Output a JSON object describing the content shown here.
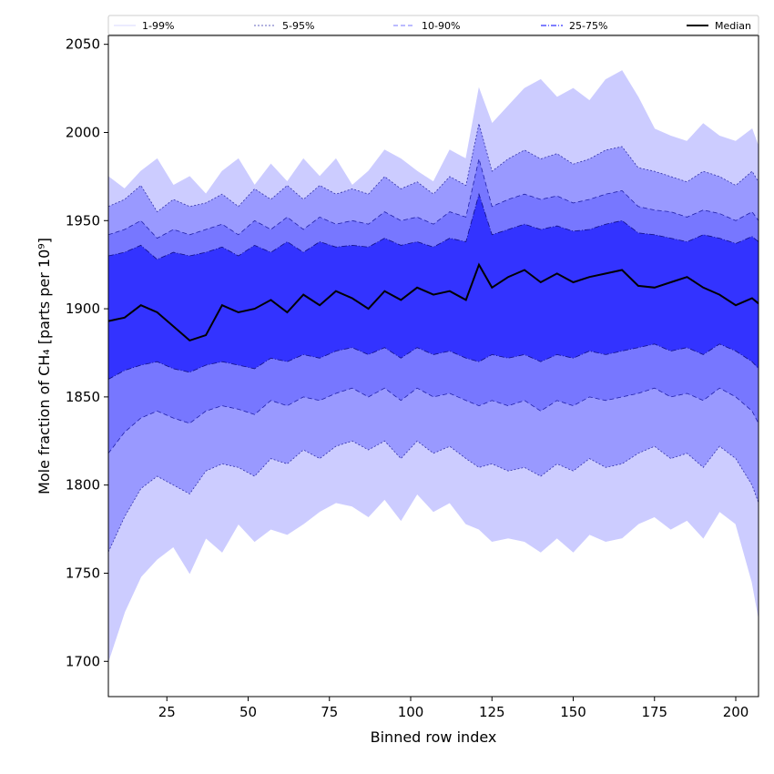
{
  "chart_data": {
    "type": "area",
    "title": "",
    "xlabel": "Binned row index",
    "ylabel": "Mole fraction of CH₄ [parts per 10⁹]",
    "xlim": [
      7,
      207
    ],
    "ylim": [
      1680,
      2055
    ],
    "x_ticks": [
      25,
      50,
      75,
      100,
      125,
      150,
      175,
      200
    ],
    "y_ticks": [
      1700,
      1750,
      1800,
      1850,
      1900,
      1950,
      2000,
      2050
    ],
    "grid": false,
    "legend_placement": "top",
    "legend": [
      {
        "label": "1-99%",
        "color": "#ccccff",
        "style": "thin-solid"
      },
      {
        "label": "5-95%",
        "color": "#3333aa",
        "style": "dotted"
      },
      {
        "label": "10-90%",
        "color": "#7777ff",
        "style": "dashed"
      },
      {
        "label": "25-75%",
        "color": "#3333ff",
        "style": "dashdot"
      },
      {
        "label": "Median",
        "color": "#000000",
        "style": "solid"
      }
    ],
    "x": [
      7,
      12,
      17,
      22,
      27,
      32,
      37,
      42,
      47,
      52,
      57,
      62,
      67,
      72,
      77,
      82,
      87,
      92,
      97,
      102,
      107,
      112,
      117,
      121,
      125,
      130,
      135,
      140,
      145,
      150,
      155,
      160,
      165,
      170,
      175,
      180,
      185,
      190,
      195,
      200,
      205,
      207
    ],
    "series": [
      {
        "name": "1-99%",
        "lower": [
          1700,
          1728,
          1748,
          1758,
          1765,
          1750,
          1770,
          1762,
          1778,
          1768,
          1775,
          1772,
          1778,
          1785,
          1790,
          1788,
          1782,
          1792,
          1780,
          1795,
          1785,
          1790,
          1778,
          1775,
          1768,
          1770,
          1768,
          1762,
          1770,
          1762,
          1772,
          1768,
          1770,
          1778,
          1782,
          1775,
          1780,
          1770,
          1785,
          1778,
          1745,
          1725
        ],
        "upper": [
          1975,
          1968,
          1978,
          1985,
          1970,
          1975,
          1965,
          1978,
          1985,
          1970,
          1982,
          1972,
          1985,
          1975,
          1985,
          1970,
          1978,
          1990,
          1985,
          1978,
          1972,
          1990,
          1985,
          2025,
          2005,
          2015,
          2025,
          2030,
          2020,
          2025,
          2018,
          2030,
          2035,
          2020,
          2002,
          1998,
          1995,
          2005,
          1998,
          1995,
          2002,
          1992
        ]
      },
      {
        "name": "5-95%",
        "lower": [
          1762,
          1782,
          1798,
          1805,
          1800,
          1795,
          1808,
          1812,
          1810,
          1805,
          1815,
          1812,
          1820,
          1815,
          1822,
          1825,
          1820,
          1825,
          1815,
          1825,
          1818,
          1822,
          1815,
          1810,
          1812,
          1808,
          1810,
          1805,
          1812,
          1808,
          1815,
          1810,
          1812,
          1818,
          1822,
          1815,
          1818,
          1810,
          1822,
          1815,
          1800,
          1790
        ],
        "upper": [
          1958,
          1962,
          1970,
          1955,
          1962,
          1958,
          1960,
          1965,
          1958,
          1968,
          1962,
          1970,
          1962,
          1970,
          1965,
          1968,
          1965,
          1975,
          1968,
          1972,
          1965,
          1975,
          1970,
          2005,
          1978,
          1985,
          1990,
          1985,
          1988,
          1982,
          1985,
          1990,
          1992,
          1980,
          1978,
          1975,
          1972,
          1978,
          1975,
          1970,
          1978,
          1972
        ]
      },
      {
        "name": "10-90%",
        "lower": [
          1818,
          1830,
          1838,
          1842,
          1838,
          1835,
          1842,
          1845,
          1843,
          1840,
          1848,
          1845,
          1850,
          1848,
          1852,
          1855,
          1850,
          1855,
          1848,
          1855,
          1850,
          1852,
          1848,
          1845,
          1848,
          1845,
          1848,
          1842,
          1848,
          1845,
          1850,
          1848,
          1850,
          1852,
          1855,
          1850,
          1852,
          1848,
          1855,
          1850,
          1842,
          1835
        ],
        "upper": [
          1942,
          1945,
          1950,
          1940,
          1945,
          1942,
          1945,
          1948,
          1942,
          1950,
          1945,
          1952,
          1945,
          1952,
          1948,
          1950,
          1948,
          1955,
          1950,
          1952,
          1948,
          1955,
          1952,
          1985,
          1958,
          1962,
          1965,
          1962,
          1964,
          1960,
          1962,
          1965,
          1967,
          1958,
          1956,
          1955,
          1952,
          1956,
          1954,
          1950,
          1955,
          1950
        ]
      },
      {
        "name": "25-75%",
        "lower": [
          1860,
          1865,
          1868,
          1870,
          1866,
          1864,
          1868,
          1870,
          1868,
          1866,
          1872,
          1870,
          1874,
          1872,
          1876,
          1878,
          1874,
          1878,
          1872,
          1878,
          1874,
          1876,
          1872,
          1870,
          1874,
          1872,
          1874,
          1870,
          1874,
          1872,
          1876,
          1874,
          1876,
          1878,
          1880,
          1876,
          1878,
          1874,
          1880,
          1876,
          1870,
          1866
        ],
        "upper": [
          1930,
          1932,
          1936,
          1928,
          1932,
          1930,
          1932,
          1935,
          1930,
          1936,
          1932,
          1938,
          1932,
          1938,
          1935,
          1936,
          1935,
          1940,
          1936,
          1938,
          1935,
          1940,
          1938,
          1965,
          1942,
          1945,
          1948,
          1945,
          1947,
          1944,
          1945,
          1948,
          1950,
          1943,
          1942,
          1940,
          1938,
          1942,
          1940,
          1937,
          1941,
          1938
        ]
      },
      {
        "name": "Median",
        "values": [
          1893,
          1895,
          1902,
          1898,
          1890,
          1882,
          1885,
          1902,
          1898,
          1900,
          1905,
          1898,
          1908,
          1902,
          1910,
          1906,
          1900,
          1910,
          1905,
          1912,
          1908,
          1910,
          1905,
          1925,
          1912,
          1918,
          1922,
          1915,
          1920,
          1915,
          1918,
          1920,
          1922,
          1913,
          1912,
          1915,
          1918,
          1912,
          1908,
          1902,
          1906,
          1903
        ]
      }
    ],
    "fill_colors": [
      "#ccccff",
      "#9999ff",
      "#7777ff",
      "#3333ff"
    ],
    "line_colors": [
      "#ccccff",
      "#3333aa",
      "#2222aa",
      "#111188"
    ]
  }
}
